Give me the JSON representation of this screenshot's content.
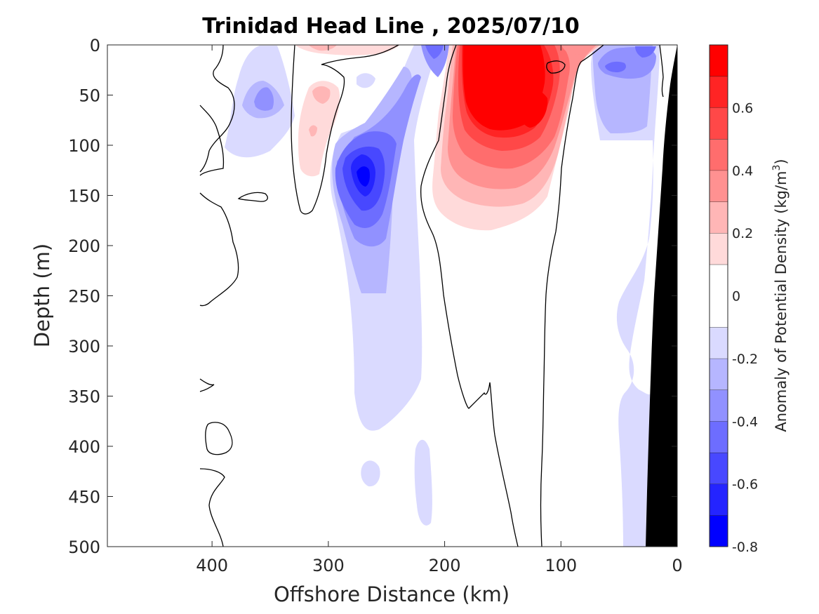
{
  "chart_data": {
    "type": "heatmap",
    "title": "Trinidad Head Line , 2025/07/10",
    "xlabel": "Offshore Distance (km)",
    "ylabel": "Depth (m)",
    "xlim": [
      490,
      0
    ],
    "ylim": [
      0,
      500
    ],
    "x_ticks": [
      400,
      300,
      200,
      100,
      0
    ],
    "x_tick_labels": [
      "400",
      "300",
      "200",
      "100",
      "0"
    ],
    "y_ticks": [
      0,
      50,
      100,
      150,
      200,
      250,
      300,
      350,
      400,
      450,
      500
    ],
    "y_tick_labels": [
      "0",
      "50",
      "100",
      "150",
      "200",
      "250",
      "300",
      "350",
      "400",
      "450",
      "500"
    ],
    "colorbar": {
      "label": "Anomaly of Potential Density",
      "unit_base": "(kg/m",
      "unit_exp": "3",
      "unit_close": ")",
      "range": [
        -0.8,
        0.8
      ],
      "levels": [
        -0.8,
        -0.7,
        -0.6,
        -0.5,
        -0.4,
        -0.3,
        -0.2,
        -0.1,
        0.1,
        0.2,
        0.3,
        0.4,
        0.5,
        0.6,
        0.7,
        0.8
      ],
      "colors": [
        "#0000ff",
        "#2424ff",
        "#4848ff",
        "#6d6dff",
        "#9191ff",
        "#b6b6ff",
        "#dadaff",
        "#ffffff",
        "#ffdada",
        "#ffb6b6",
        "#ff9191",
        "#ff6d6d",
        "#ff4848",
        "#ff2424",
        "#ff0000"
      ],
      "tick_values": [
        -0.8,
        -0.6,
        -0.4,
        -0.2,
        0,
        0.2,
        0.4,
        0.6
      ],
      "tick_labels": [
        "-0.8",
        "-0.6",
        "-0.4",
        "-0.2",
        "0",
        "0.2",
        "0.4",
        "0.6"
      ]
    },
    "features": [
      {
        "label": "positive anomaly core",
        "x": 150,
        "y": 60,
        "value": 0.8
      },
      {
        "label": "negative anomaly core",
        "x": 272,
        "y": 130,
        "value": -0.6
      },
      {
        "label": "negative anomaly (shelf)",
        "x": 50,
        "y": 60,
        "value": -0.3
      },
      {
        "label": "negative anomaly (upper offshore)",
        "x": 355,
        "y": 50,
        "value": -0.3
      },
      {
        "label": "bathymetry",
        "color": "#000000"
      }
    ]
  }
}
